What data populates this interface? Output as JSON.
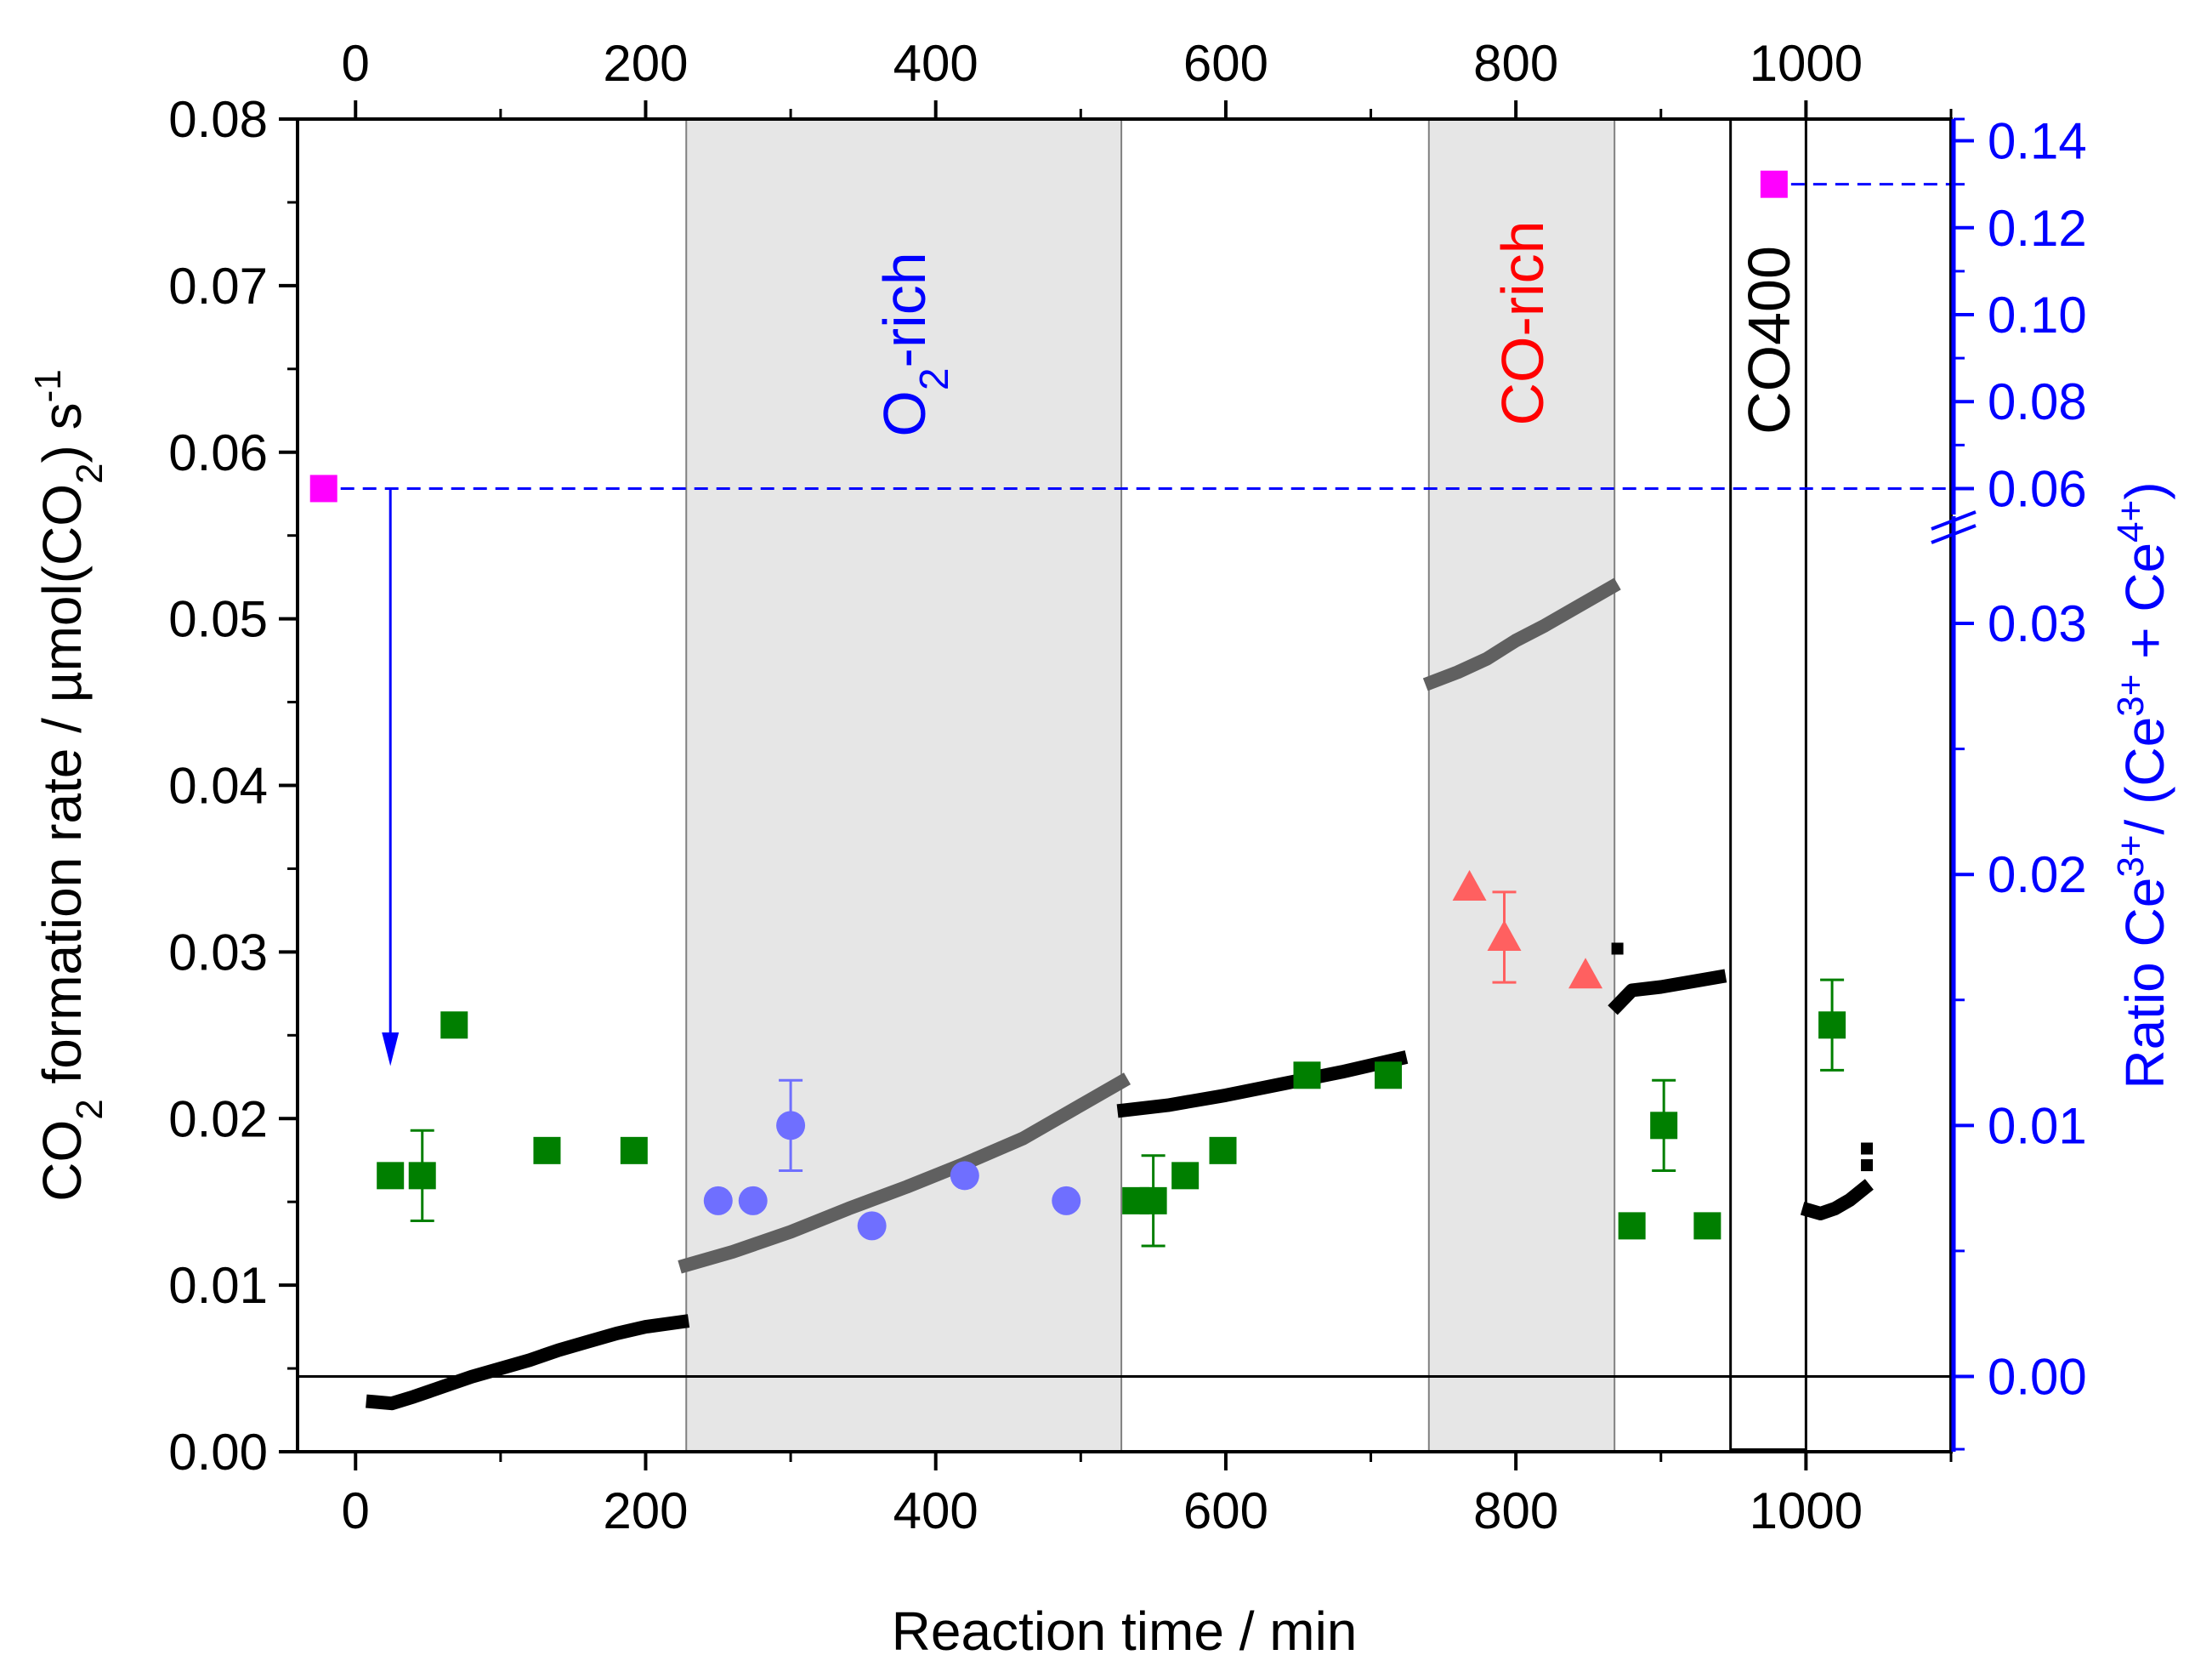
{
  "chart_data": {
    "type": "scatter",
    "xlabel": "Reaction time / min",
    "x_ticks": [
      "0",
      "200",
      "400",
      "600",
      "800",
      "1000"
    ],
    "x_top_ticks": [
      "0",
      "200",
      "400",
      "600",
      "800",
      "1000"
    ],
    "xlim": [
      -40,
      1100
    ],
    "ylabel_left": {
      "pre": "CO",
      "sub1": "2",
      "mid": " formation rate / µmol(CO",
      "sub2": "2",
      "post": ") s",
      "sup": "-1"
    },
    "ylim_left": [
      0,
      0.08
    ],
    "y_left_ticks": [
      "0.00",
      "0.01",
      "0.02",
      "0.03",
      "0.04",
      "0.05",
      "0.06",
      "0.07",
      "0.08"
    ],
    "ylabel_right": {
      "pre": "Ratio Ce",
      "sup1": "3+",
      "mid": "/ (Ce",
      "sup2": "3+",
      "mid2": " + Ce",
      "sup3": "4+",
      "post": ")"
    },
    "y_right_lower_ticks": [
      "0.00",
      "0.01",
      "0.02",
      "0.03"
    ],
    "y_right_lower_range": [
      -0.003,
      0.034
    ],
    "y_right_upper_ticks": [
      "0.06",
      "0.08",
      "0.10",
      "0.12",
      "0.14"
    ],
    "y_right_upper_range": [
      0.055,
      0.145
    ],
    "shaded_regions": [
      {
        "start": 228,
        "end": 528,
        "label": "O",
        "label_sub": "2",
        "label_post": "-rich",
        "label_color": "#0000ff",
        "color": "#e6e6e6"
      },
      {
        "start": 740,
        "end": 868,
        "label": "CO-rich",
        "label_sub": "",
        "label_post": "",
        "label_color": "#ff0000",
        "color": "#e6e6e6"
      }
    ],
    "co400_region": {
      "start": 948,
      "end": 1000,
      "label": "CO400"
    },
    "colors": {
      "rate_black": "#000000",
      "rate_gray": "#606060",
      "green": "#007f00",
      "blue_circle": "#6f6fff",
      "red_triangle": "#ff6060",
      "magenta": "#ff00ff",
      "axis_blue": "#0000ff"
    },
    "series": [
      {
        "name": "CO2 formation rate (standard)",
        "axis": "left",
        "color": "#000000",
        "segments": [
          {
            "x": [
              12,
              25,
              40,
              60,
              80,
              100,
              120,
              140,
              160,
              180,
              200,
              225
            ],
            "y": [
              0.003,
              0.0029,
              0.0033,
              0.0039,
              0.0045,
              0.005,
              0.0055,
              0.0061,
              0.0066,
              0.0071,
              0.0075,
              0.0078
            ]
          },
          {
            "x": [
              530,
              560,
              600,
              640,
              680,
              720
            ],
            "y": [
              0.0205,
              0.0208,
              0.0214,
              0.0221,
              0.0228,
              0.0236
            ]
          },
          {
            "x": [
              870,
              880,
              900,
              920,
              940
            ],
            "y": [
              0.0268,
              0.0277,
              0.0279,
              0.0282,
              0.0285
            ]
          },
          {
            "x": [
              1002,
              1010,
              1020,
              1030,
              1040
            ],
            "y": [
              0.0145,
              0.0143,
              0.0146,
              0.0151,
              0.0158
            ]
          }
        ]
      },
      {
        "name": "CO2 formation rate (transient)",
        "axis": "left",
        "color": "#606060",
        "segments": [
          {
            "x": [
              228,
              260,
              300,
              340,
              380,
              420,
              460,
              500,
              528
            ],
            "y": [
              0.0112,
              0.012,
              0.0132,
              0.0146,
              0.0159,
              0.0173,
              0.0188,
              0.0208,
              0.0222
            ]
          },
          {
            "x": [
              742,
              760,
              780,
              800,
              820,
              840,
              866
            ],
            "y": [
              0.0462,
              0.0468,
              0.0476,
              0.0487,
              0.0496,
              0.0506,
              0.0519
            ]
          }
        ]
      },
      {
        "name": "Ce3+ ratio (standard)",
        "axis": "right",
        "marker": "square",
        "color": "#007f00",
        "x": [
          24,
          46,
          68,
          132,
          192,
          538,
          550,
          572,
          598,
          656,
          712,
          880,
          902,
          932,
          1018
        ],
        "y": [
          0.008,
          0.008,
          0.014,
          0.009,
          0.009,
          0.007,
          0.007,
          0.008,
          0.009,
          0.012,
          0.012,
          0.006,
          0.01,
          0.006,
          0.014
        ],
        "err": [
          0,
          0.0018,
          0,
          0,
          0,
          0,
          0.0018,
          0,
          0,
          0,
          0,
          0,
          0.0018,
          0,
          0.0018
        ]
      },
      {
        "name": "Ce3+ ratio (O2-rich)",
        "axis": "right",
        "marker": "circle",
        "color": "#6f6fff",
        "x": [
          250,
          274,
          300,
          356,
          420,
          490
        ],
        "y": [
          0.007,
          0.007,
          0.01,
          0.006,
          0.008,
          0.007
        ],
        "err": [
          0,
          0,
          0.0018,
          0,
          0,
          0
        ]
      },
      {
        "name": "Ce3+ ratio (CO-rich)",
        "axis": "right",
        "marker": "triangle",
        "color": "#ff6060",
        "x": [
          768,
          792,
          848
        ],
        "y": [
          0.0195,
          0.0175,
          0.016
        ],
        "err": [
          0,
          0.0018,
          0
        ]
      },
      {
        "name": "Ce3+ ratio (reduced)",
        "axis": "right_upper",
        "marker": "square",
        "color": "#ff00ff",
        "x": [
          -22,
          978
        ],
        "y": [
          0.06,
          0.13
        ]
      }
    ],
    "reference_line_ratio_zero": 0.0
  }
}
